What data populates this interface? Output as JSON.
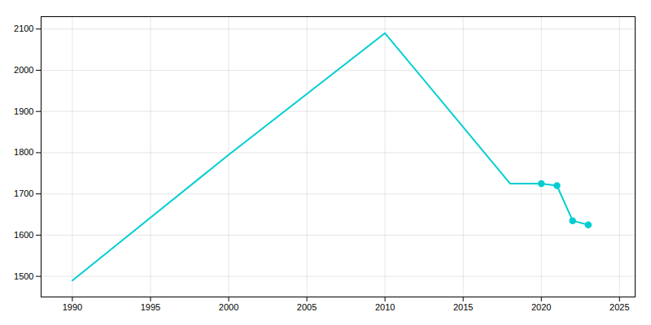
{
  "chart_data": {
    "type": "line",
    "series": [
      {
        "type": "line",
        "color": "#00CED1",
        "x": [
          1990,
          2000,
          2010,
          2018,
          2020,
          2021,
          2022,
          2023
        ],
        "values": [
          1490,
          1795,
          2090,
          1725,
          1725,
          1720,
          1635,
          1625
        ]
      },
      {
        "type": "scatter",
        "marker": "circle",
        "color": "#00CED1",
        "x": [
          2020,
          2021,
          2022,
          2023
        ],
        "values": [
          1725,
          1720,
          1635,
          1625
        ]
      }
    ],
    "xlim": [
      1988,
      2026
    ],
    "ylim": [
      1450,
      2130
    ],
    "xticks": [
      1990,
      1995,
      2000,
      2005,
      2010,
      2015,
      2020,
      2025
    ],
    "yticks": [
      1500,
      1600,
      1700,
      1800,
      1900,
      2000,
      2100
    ],
    "grid": true
  }
}
